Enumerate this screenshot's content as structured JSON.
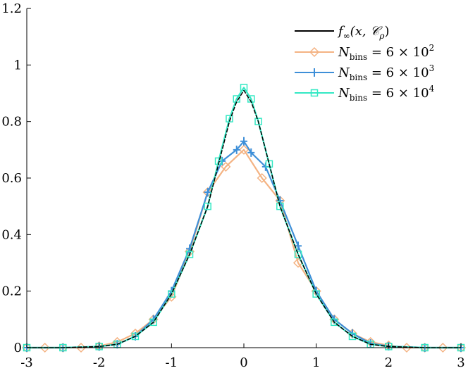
{
  "chart_data": {
    "type": "line",
    "title": "",
    "xlabel": "",
    "ylabel": "",
    "xlim": [
      -3,
      3
    ],
    "ylim": [
      0,
      1.2
    ],
    "grid": false,
    "legend_position": "top-right",
    "x_ticks": [
      "-3",
      "-2",
      "-1",
      "0",
      "1",
      "2",
      "3"
    ],
    "y_ticks": [
      "0",
      "0.2",
      "0.4",
      "0.6",
      "0.8",
      "1",
      "1.2"
    ],
    "series": [
      {
        "name": "f∞(x, Cρ)",
        "style": "line",
        "color": "#000000",
        "x": [
          -3.0,
          -2.5,
          -2.0,
          -1.75,
          -1.5,
          -1.25,
          -1.0,
          -0.75,
          -0.5,
          -0.35,
          -0.2,
          -0.1,
          0.0,
          0.1,
          0.2,
          0.35,
          0.5,
          0.75,
          1.0,
          1.25,
          1.5,
          1.75,
          2.0,
          2.5,
          3.0
        ],
        "y": [
          0.0,
          0.0,
          0.004,
          0.012,
          0.04,
          0.09,
          0.19,
          0.33,
          0.5,
          0.65,
          0.8,
          0.87,
          0.91,
          0.87,
          0.8,
          0.65,
          0.5,
          0.33,
          0.19,
          0.09,
          0.04,
          0.012,
          0.004,
          0.0,
          0.0
        ]
      },
      {
        "name": "Nbins = 6 × 10²",
        "style": "line-diamond",
        "color": "#F4B383",
        "x": [
          -3.0,
          -2.75,
          -2.5,
          -2.25,
          -2.0,
          -1.75,
          -1.5,
          -1.25,
          -1.0,
          -0.75,
          -0.5,
          -0.25,
          0.0,
          0.25,
          0.5,
          0.75,
          1.0,
          1.25,
          1.5,
          1.75,
          2.0,
          2.25,
          2.5,
          2.75,
          3.0
        ],
        "y": [
          0.0,
          0.0,
          0.0,
          0.0,
          0.005,
          0.02,
          0.05,
          0.1,
          0.18,
          0.34,
          0.55,
          0.64,
          0.7,
          0.6,
          0.52,
          0.3,
          0.2,
          0.1,
          0.05,
          0.02,
          0.008,
          0.0,
          0.0,
          0.0,
          0.0
        ]
      },
      {
        "name": "Nbins = 6 × 10³",
        "style": "line-plus",
        "color": "#3E8FD8",
        "x": [
          -3.0,
          -2.5,
          -2.0,
          -1.75,
          -1.5,
          -1.25,
          -1.0,
          -0.75,
          -0.5,
          -0.3,
          -0.1,
          0.0,
          0.1,
          0.3,
          0.5,
          0.75,
          1.0,
          1.25,
          1.5,
          1.75,
          2.0,
          2.5,
          3.0
        ],
        "y": [
          0.0,
          0.0,
          0.004,
          0.012,
          0.04,
          0.1,
          0.2,
          0.35,
          0.55,
          0.66,
          0.7,
          0.73,
          0.69,
          0.64,
          0.52,
          0.36,
          0.2,
          0.1,
          0.05,
          0.015,
          0.005,
          0.0,
          0.0
        ]
      },
      {
        "name": "Nbins = 6 × 10⁴",
        "style": "line-square",
        "color": "#33E8C4",
        "x": [
          -3.0,
          -2.5,
          -2.0,
          -1.75,
          -1.5,
          -1.25,
          -1.0,
          -0.75,
          -0.5,
          -0.35,
          -0.2,
          -0.1,
          0.0,
          0.1,
          0.2,
          0.35,
          0.5,
          0.75,
          1.0,
          1.25,
          1.5,
          1.75,
          2.0,
          2.5,
          3.0
        ],
        "y": [
          0.0,
          0.0,
          0.004,
          0.012,
          0.04,
          0.09,
          0.19,
          0.33,
          0.5,
          0.66,
          0.81,
          0.88,
          0.92,
          0.88,
          0.8,
          0.65,
          0.5,
          0.33,
          0.19,
          0.09,
          0.04,
          0.012,
          0.004,
          0.0,
          0.0
        ]
      }
    ]
  }
}
